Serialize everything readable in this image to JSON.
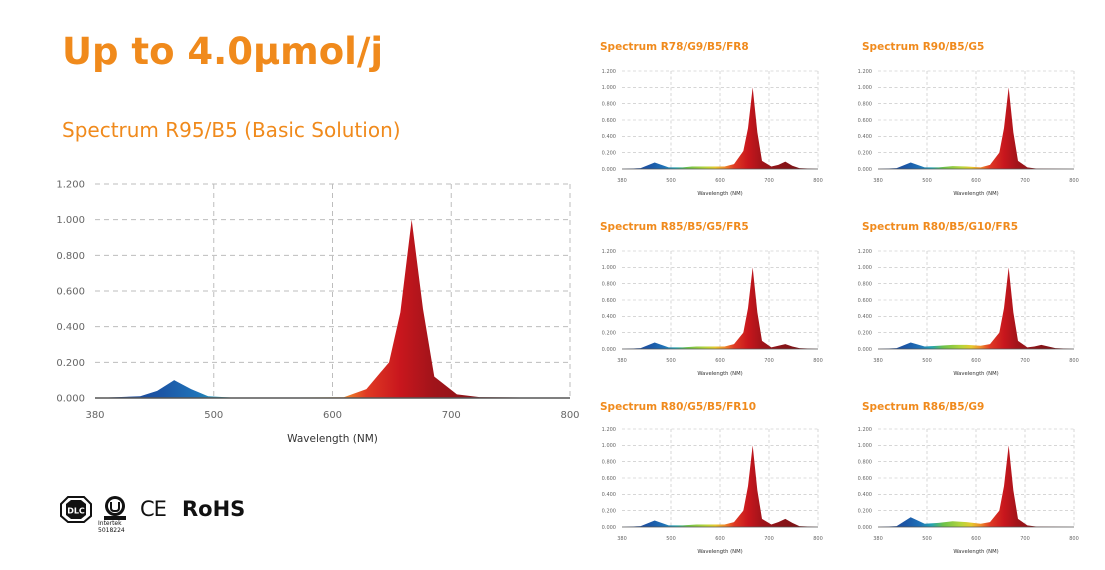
{
  "headline": "Up to 4.0µmol/j",
  "subheadline": "Spectrum R95/B5 (Basic Solution)",
  "certifications": {
    "dlc": "DLC",
    "ul_text": "Intertek",
    "ul_number": "5018224",
    "ce": "CE",
    "rohs": "RoHS"
  },
  "colors": {
    "accent": "#f08a1c",
    "red": "#c8161d",
    "blue": "#1f5fa8",
    "green": "#8ccf3a"
  },
  "chart_data": [
    {
      "id": "main",
      "type": "area",
      "title": "Spectrum R95/B5 (Basic Solution)",
      "xlabel": "Wavelength (NM)",
      "ylabel": "",
      "xlim": [
        380,
        800
      ],
      "ylim": [
        0,
        1.2
      ],
      "xticks": [
        "380",
        "500",
        "600",
        "700",
        "800"
      ],
      "yticks": [
        "0.000",
        "0.200",
        "0.400",
        "0.600",
        "0.800",
        "1.000",
        "1.200"
      ],
      "grid": true,
      "series": [
        {
          "name": "spectrum",
          "x": [
            380,
            420,
            435,
            450,
            465,
            480,
            500,
            560,
            600,
            620,
            640,
            650,
            660,
            670,
            680,
            700,
            720,
            800
          ],
          "values": [
            0.0,
            0.01,
            0.04,
            0.1,
            0.05,
            0.01,
            0.003,
            0.003,
            0.004,
            0.05,
            0.2,
            0.48,
            1.0,
            0.5,
            0.12,
            0.02,
            0.005,
            0.0
          ]
        }
      ]
    },
    {
      "id": "r78",
      "type": "area",
      "title": "Spectrum R78/G9/B5/FR8",
      "xlabel": "Wavelength (NM)",
      "xlim": [
        380,
        800
      ],
      "ylim": [
        0,
        1.2
      ],
      "xticks": [
        "380",
        "500",
        "600",
        "700",
        "800"
      ],
      "yticks": [
        "0.000",
        "0.200",
        "0.400",
        "0.600",
        "0.800",
        "1.000",
        "1.200"
      ],
      "grid": true,
      "series": [
        {
          "name": "spectrum",
          "x": [
            380,
            420,
            450,
            480,
            510,
            530,
            560,
            600,
            620,
            640,
            650,
            660,
            670,
            680,
            700,
            715,
            730,
            745,
            760,
            800
          ],
          "values": [
            0.0,
            0.01,
            0.08,
            0.02,
            0.02,
            0.03,
            0.03,
            0.03,
            0.06,
            0.22,
            0.5,
            1.0,
            0.45,
            0.1,
            0.03,
            0.05,
            0.09,
            0.04,
            0.01,
            0.0
          ]
        }
      ]
    },
    {
      "id": "r90",
      "type": "area",
      "title": "Spectrum R90/B5/G5",
      "xlabel": "Wavelength (NM)",
      "xlim": [
        380,
        800
      ],
      "ylim": [
        0,
        1.2
      ],
      "xticks": [
        "380",
        "500",
        "600",
        "700",
        "800"
      ],
      "yticks": [
        "0.000",
        "0.200",
        "0.400",
        "0.600",
        "0.800",
        "1.000",
        "1.200"
      ],
      "grid": true,
      "series": [
        {
          "name": "spectrum",
          "x": [
            380,
            420,
            450,
            480,
            510,
            540,
            570,
            600,
            620,
            640,
            650,
            660,
            670,
            680,
            700,
            720,
            800
          ],
          "values": [
            0.0,
            0.01,
            0.08,
            0.02,
            0.02,
            0.035,
            0.03,
            0.02,
            0.05,
            0.2,
            0.5,
            1.0,
            0.45,
            0.1,
            0.02,
            0.005,
            0.0
          ]
        }
      ]
    },
    {
      "id": "r85",
      "type": "area",
      "title": "Spectrum R85/B5/G5/FR5",
      "xlabel": "Wavelength (NM)",
      "xlim": [
        380,
        800
      ],
      "ylim": [
        0,
        1.2
      ],
      "xticks": [
        "380",
        "500",
        "600",
        "700",
        "800"
      ],
      "yticks": [
        "0.000",
        "0.200",
        "0.400",
        "0.600",
        "0.800",
        "1.000",
        "1.200"
      ],
      "grid": true,
      "series": [
        {
          "name": "spectrum",
          "x": [
            380,
            420,
            450,
            480,
            510,
            540,
            570,
            600,
            620,
            640,
            650,
            660,
            670,
            680,
            700,
            715,
            730,
            745,
            760,
            800
          ],
          "values": [
            0.0,
            0.01,
            0.08,
            0.02,
            0.02,
            0.03,
            0.03,
            0.03,
            0.06,
            0.2,
            0.5,
            1.0,
            0.45,
            0.1,
            0.02,
            0.04,
            0.06,
            0.03,
            0.01,
            0.0
          ]
        }
      ]
    },
    {
      "id": "r80g10",
      "type": "area",
      "title": "Spectrum R80/B5/G10/FR5",
      "xlabel": "Wavelength (NM)",
      "xlim": [
        380,
        800
      ],
      "ylim": [
        0,
        1.2
      ],
      "xticks": [
        "380",
        "500",
        "600",
        "700",
        "800"
      ],
      "yticks": [
        "0.000",
        "0.200",
        "0.400",
        "0.600",
        "0.800",
        "1.000",
        "1.200"
      ],
      "grid": true,
      "series": [
        {
          "name": "spectrum",
          "x": [
            380,
            420,
            450,
            480,
            510,
            540,
            570,
            600,
            620,
            640,
            650,
            660,
            670,
            680,
            700,
            715,
            730,
            745,
            760,
            800
          ],
          "values": [
            0.0,
            0.01,
            0.08,
            0.03,
            0.04,
            0.05,
            0.05,
            0.04,
            0.06,
            0.2,
            0.5,
            1.0,
            0.45,
            0.1,
            0.02,
            0.03,
            0.05,
            0.03,
            0.01,
            0.0
          ]
        }
      ]
    },
    {
      "id": "r80fr10",
      "type": "area",
      "title": "Spectrum R80/G5/B5/FR10",
      "xlabel": "Wavelength (NM)",
      "xlim": [
        380,
        800
      ],
      "ylim": [
        0,
        1.2
      ],
      "xticks": [
        "380",
        "500",
        "600",
        "700",
        "800"
      ],
      "yticks": [
        "0.000",
        "0.200",
        "0.400",
        "0.600",
        "0.800",
        "1.000",
        "1.200"
      ],
      "grid": true,
      "series": [
        {
          "name": "spectrum",
          "x": [
            380,
            420,
            450,
            480,
            510,
            540,
            570,
            600,
            620,
            640,
            650,
            660,
            670,
            680,
            700,
            715,
            730,
            745,
            760,
            800
          ],
          "values": [
            0.0,
            0.01,
            0.08,
            0.02,
            0.02,
            0.03,
            0.03,
            0.03,
            0.06,
            0.2,
            0.5,
            1.0,
            0.45,
            0.1,
            0.03,
            0.06,
            0.1,
            0.05,
            0.01,
            0.0
          ]
        }
      ]
    },
    {
      "id": "r86",
      "type": "area",
      "title": "Spectrum R86/B5/G9",
      "xlabel": "Wavelength (NM)",
      "xlim": [
        380,
        800
      ],
      "ylim": [
        0,
        1.2
      ],
      "xticks": [
        "380",
        "500",
        "600",
        "700",
        "800"
      ],
      "yticks": [
        "0.000",
        "0.200",
        "0.400",
        "0.600",
        "0.800",
        "1.000",
        "1.200"
      ],
      "grid": true,
      "series": [
        {
          "name": "spectrum",
          "x": [
            380,
            420,
            450,
            480,
            510,
            540,
            570,
            600,
            620,
            640,
            650,
            660,
            670,
            680,
            700,
            720,
            800
          ],
          "values": [
            0.0,
            0.01,
            0.12,
            0.04,
            0.05,
            0.07,
            0.06,
            0.04,
            0.06,
            0.2,
            0.5,
            1.0,
            0.45,
            0.1,
            0.02,
            0.005,
            0.0
          ]
        }
      ]
    }
  ]
}
